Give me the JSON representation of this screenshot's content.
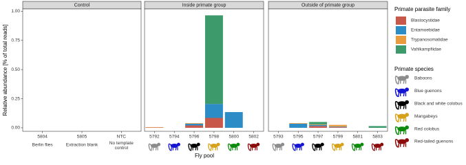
{
  "chart_data": {
    "type": "bar",
    "stacked": true,
    "ylabel": "Relative abundance [% of total reads]",
    "xlabel": "Fly pool",
    "ylim": [
      -0.03,
      1.02
    ],
    "yticks": [
      {
        "value": 0,
        "label": "0.00"
      },
      {
        "value": 0.25,
        "label": "0.25"
      },
      {
        "value": 0.5,
        "label": "0.50"
      },
      {
        "value": 0.75,
        "label": "0.75"
      },
      {
        "value": 1,
        "label": "1.00"
      }
    ],
    "legend_title": "Primate parasite family",
    "series": [
      {
        "name": "Blastocystidae",
        "color": "#c8584a"
      },
      {
        "name": "Entamoebidae",
        "color": "#2c8cc6"
      },
      {
        "name": "Trypanosomatidae",
        "color": "#ea9b3e"
      },
      {
        "name": "Vahlkampfiidae",
        "color": "#3c9a6b"
      }
    ],
    "species_title": "Primate species",
    "species": [
      {
        "name": "Baboons",
        "color": "#8c8c8c"
      },
      {
        "name": "Blue guenons",
        "color": "#1414d2"
      },
      {
        "name": "Black and white colobus",
        "color": "#000000"
      },
      {
        "name": "Mangabeys",
        "color": "#d6a21a"
      },
      {
        "name": "Red colobus",
        "color": "#0b8a0b"
      },
      {
        "name": "Red-tailed guenons",
        "color": "#8b0a0a"
      }
    ],
    "facets": [
      {
        "title": "Control",
        "categories": [
          "5804",
          "5805",
          "NTC"
        ],
        "category_labels": [
          "Berlin flies",
          "Extraction blank",
          "No template control"
        ],
        "species_icons": false,
        "series": [
          {
            "values": [
              0,
              0,
              0
            ]
          },
          {
            "values": [
              0,
              0,
              0
            ]
          },
          {
            "values": [
              0,
              0,
              0
            ]
          },
          {
            "values": [
              0,
              0,
              0
            ]
          }
        ]
      },
      {
        "title": "Inside primate group",
        "categories": [
          "5792",
          "5794",
          "5796",
          "5798",
          "5800",
          "5802"
        ],
        "species_icons": true,
        "series": [
          {
            "values": [
              0.003,
              0,
              0.02,
              0.085,
              0,
              0
            ]
          },
          {
            "values": [
              0,
              0,
              0.015,
              0.12,
              0.135,
              0
            ]
          },
          {
            "values": [
              0.003,
              0,
              0.005,
              0,
              0,
              0
            ]
          },
          {
            "values": [
              0,
              0,
              0,
              0.76,
              0,
              0
            ]
          }
        ]
      },
      {
        "title": "Outside of primate group",
        "categories": [
          "5793",
          "5795",
          "5797",
          "5799",
          "5801",
          "5803"
        ],
        "species_icons": true,
        "series": [
          {
            "values": [
              0,
              0,
              0.015,
              0.005,
              0,
              0
            ]
          },
          {
            "values": [
              0,
              0.035,
              0.01,
              0.005,
              0,
              0
            ]
          },
          {
            "values": [
              0,
              0.005,
              0.005,
              0.015,
              0,
              0
            ]
          },
          {
            "values": [
              0,
              0,
              0.02,
              0,
              0,
              0.015
            ]
          }
        ]
      }
    ]
  }
}
